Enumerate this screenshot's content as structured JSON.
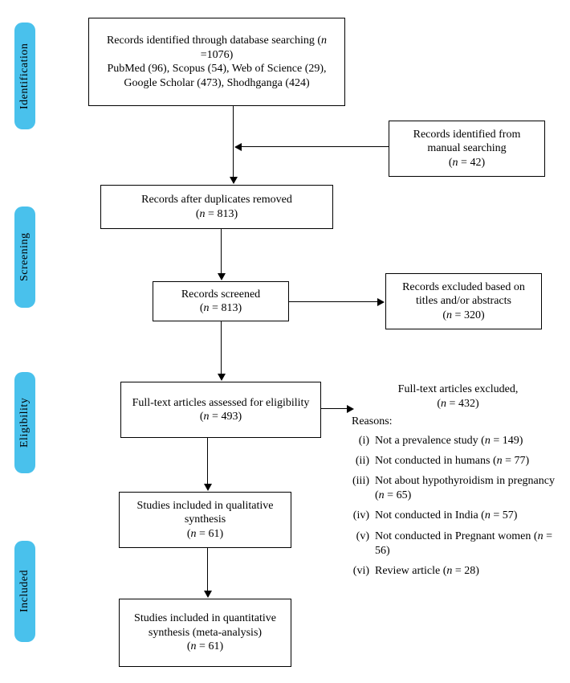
{
  "structure": "flowchart",
  "stages": {
    "identification": "Identification",
    "screening": "Screening",
    "eligibility": "Eligibility",
    "included": "Included"
  },
  "nodes": {
    "n1": {
      "text": "Records identified through database searching (n =1076)\nPubMed (96), Scopus (54), Web of Science (29), Google Scholar (473), Shodhganga (424)"
    },
    "n2": {
      "text": "Records identified from manual searching\n(n = 42)"
    },
    "n3": {
      "text": "Records after duplicates removed\n(n = 813)"
    },
    "n4": {
      "text": "Records screened\n(n = 813)"
    },
    "n5": {
      "text": "Records excluded based on titles and/or abstracts\n(n = 320)"
    },
    "n6": {
      "text": "Full-text articles assessed for eligibility\n(n = 493)"
    },
    "n7": {
      "text": "Studies included in qualitative synthesis\n(n = 61)"
    },
    "n8": {
      "text": "Studies included in quantitative synthesis (meta-analysis)\n(n = 61)"
    }
  },
  "reasons": {
    "title": "Full-text articles excluded,\n(n = 432)",
    "subtitle": "Reasons:",
    "items": [
      {
        "roman": "(i)",
        "text": "Not a prevalence study (n = 149)"
      },
      {
        "roman": "(ii)",
        "text": "Not conducted in humans (n = 77)"
      },
      {
        "roman": "(iii)",
        "text": "Not about hypothyroidism in pregnancy (n = 65)"
      },
      {
        "roman": "(iv)",
        "text": "Not conducted in India (n = 57)"
      },
      {
        "roman": "(v)",
        "text": "Not conducted in Pregnant women (n = 56)"
      },
      {
        "roman": "(vi)",
        "text": "Review article (n = 28)"
      }
    ]
  },
  "style": {
    "accent": "#49c1ec",
    "line": "#000000",
    "bg": "#ffffff",
    "font": "Times New Roman"
  }
}
